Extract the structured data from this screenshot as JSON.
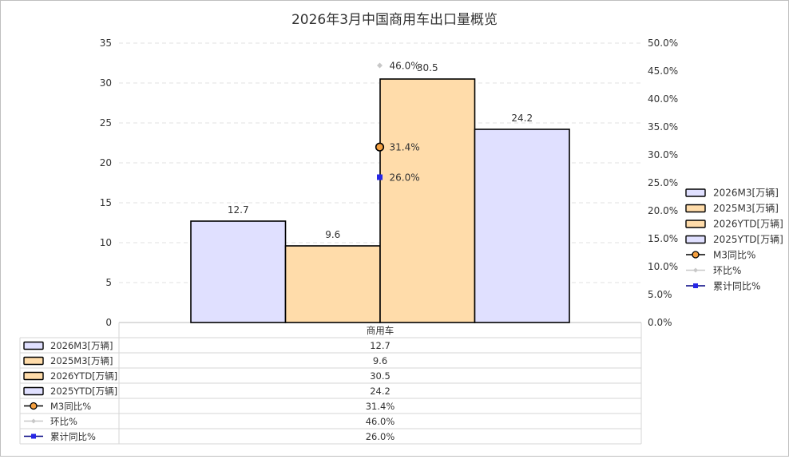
{
  "chart_data": {
    "type": "bar",
    "title": "2026年3月中国商用车出口量概览",
    "categories": [
      "商用车"
    ],
    "y_left": {
      "min": 0,
      "max": 35,
      "ticks": [
        "0",
        "5",
        "10",
        "15",
        "20",
        "25",
        "30",
        "35"
      ]
    },
    "y_right": {
      "min": 0,
      "max": 50,
      "ticks": [
        "0.0%",
        "5.0%",
        "10.0%",
        "15.0%",
        "20.0%",
        "25.0%",
        "30.0%",
        "35.0%",
        "40.0%",
        "45.0%",
        "50.0%"
      ]
    },
    "grid": true,
    "legend_position": "right",
    "bar_series": [
      {
        "name": "2026M3[万辆]",
        "value": 12.7,
        "label": "12.7",
        "color": "#e0e0ff"
      },
      {
        "name": "2025M3[万辆]",
        "value": 9.6,
        "label": "9.6",
        "color": "#ffdcaa"
      },
      {
        "name": "2026YTD[万辆]",
        "value": 30.5,
        "label": "30.5",
        "color": "#ffdcaa"
      },
      {
        "name": "2025YTD[万辆]",
        "value": 24.2,
        "label": "24.2",
        "color": "#e0e0ff"
      }
    ],
    "line_series": [
      {
        "name": "M3同比%",
        "value": 31.4,
        "label": "31.4%",
        "marker": "circle",
        "color": "#f5a040",
        "line_color": "#000000"
      },
      {
        "name": "环比%",
        "value": 46.0,
        "label": "46.0%",
        "marker": "diamond",
        "color": "#c8c8c8",
        "line_color": "#c8c8c8"
      },
      {
        "name": "累计同比%",
        "value": 26.0,
        "label": "26.0%",
        "marker": "square",
        "color": "#2626e6",
        "line_color": "#000080"
      }
    ],
    "table": {
      "header": "商用车",
      "rows": [
        {
          "name": "2026M3[万辆]",
          "value": "12.7"
        },
        {
          "name": "2025M3[万辆]",
          "value": "9.6"
        },
        {
          "name": "2026YTD[万辆]",
          "value": "30.5"
        },
        {
          "name": "2025YTD[万辆]",
          "value": "24.2"
        },
        {
          "name": "M3同比%",
          "value": "31.4%"
        },
        {
          "name": "环比%",
          "value": "46.0%"
        },
        {
          "name": "累计同比%",
          "value": "26.0%"
        }
      ]
    }
  }
}
